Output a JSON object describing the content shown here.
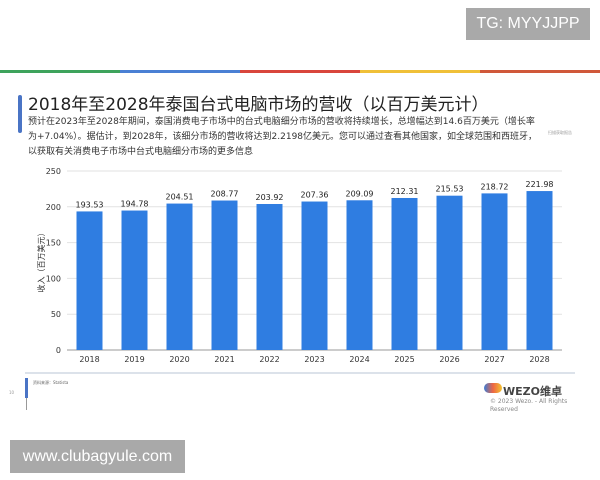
{
  "watermark_top": "TG: MYYJJPP",
  "watermark_bottom": "www.clubagyule.com",
  "stripe_colors": [
    "#3ea35c",
    "#4a80d4",
    "#d9463c",
    "#f0c038",
    "#d0583a"
  ],
  "title": "2018年至2028年泰国台式电脑市场的营收（以百万美元计）",
  "description": "预计在2023年至2028年期间，泰国消费电子市场中的台式电脑细分市场的营收将持续增长，总增幅达到14.6百万美元（增长率为+7.04%）。据估计，到2028年，该细分市场的营收将达到2.2198亿美元。您可以通过查看其他国家，如全球范围和西班牙，以获取有关消费电子市场中台式电脑细分市场的更多信息",
  "side_note": "扫描获取报告",
  "source": "资料来源：Statista",
  "page_number": "10",
  "logo_text": "WEZO维卓",
  "copyright": "© 2023 Wezo. - All Rights Reserved",
  "chart_data": {
    "type": "bar",
    "categories": [
      "2018",
      "2019",
      "2020",
      "2021",
      "2022",
      "2023",
      "2024",
      "2025",
      "2026",
      "2027",
      "2028"
    ],
    "values": [
      193.53,
      194.78,
      204.51,
      208.77,
      203.92,
      207.36,
      209.09,
      212.31,
      215.53,
      218.72,
      221.98
    ],
    "data_labels": [
      "193.53",
      "194.78",
      "204.51",
      "208.77",
      "203.92",
      "207.36",
      "209.09",
      "212.31",
      "215.53",
      "218.72",
      "221.98"
    ],
    "ylabel": "收入（百万美元）",
    "ylim": [
      0,
      250
    ],
    "yticks": [
      0,
      50,
      100,
      150,
      200,
      250
    ],
    "grid": true,
    "bar_color": "#2f7de1"
  }
}
